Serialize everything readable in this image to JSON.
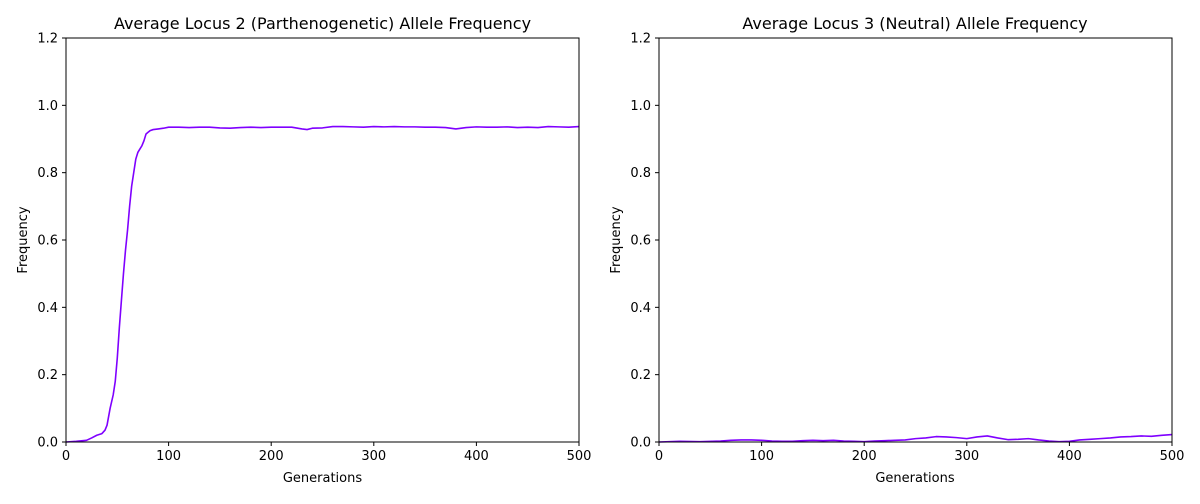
{
  "colors": {
    "line": "#7f00ff",
    "axes": "#000000",
    "background": "#ffffff"
  },
  "chart_data": [
    {
      "type": "line",
      "title": "Average Locus 2 (Parthenogenetic) Allele Frequency",
      "xlabel": "Generations",
      "ylabel": "Frequency",
      "xlim": [
        0,
        500
      ],
      "ylim": [
        0,
        1.2
      ],
      "xticks": [
        0,
        100,
        200,
        300,
        400,
        500
      ],
      "yticks": [
        0.0,
        0.2,
        0.4,
        0.6,
        0.8,
        1.0,
        1.2
      ],
      "ytick_labels": [
        "0.0",
        "0.2",
        "0.4",
        "0.6",
        "0.8",
        "1.0",
        "1.2"
      ],
      "grid": false,
      "series": [
        {
          "x": [
            0,
            10,
            20,
            25,
            30,
            35,
            38,
            40,
            43,
            46,
            48,
            50,
            52,
            54,
            56,
            58,
            60,
            62,
            64,
            66,
            68,
            70,
            72,
            74,
            76,
            78,
            80,
            82,
            85,
            90,
            95,
            100,
            110,
            120,
            130,
            140,
            150,
            160,
            170,
            180,
            190,
            200,
            210,
            220,
            230,
            235,
            240,
            250,
            260,
            270,
            280,
            290,
            300,
            310,
            320,
            330,
            340,
            350,
            360,
            370,
            380,
            390,
            400,
            410,
            420,
            430,
            440,
            450,
            460,
            470,
            480,
            490,
            500
          ],
          "y": [
            0.0,
            0.002,
            0.005,
            0.012,
            0.02,
            0.025,
            0.035,
            0.05,
            0.1,
            0.14,
            0.18,
            0.25,
            0.34,
            0.42,
            0.5,
            0.57,
            0.63,
            0.7,
            0.76,
            0.8,
            0.84,
            0.86,
            0.87,
            0.88,
            0.895,
            0.915,
            0.92,
            0.925,
            0.928,
            0.93,
            0.932,
            0.935,
            0.935,
            0.934,
            0.935,
            0.935,
            0.933,
            0.932,
            0.934,
            0.935,
            0.934,
            0.935,
            0.935,
            0.935,
            0.93,
            0.928,
            0.932,
            0.933,
            0.937,
            0.937,
            0.936,
            0.935,
            0.937,
            0.936,
            0.937,
            0.936,
            0.936,
            0.935,
            0.935,
            0.934,
            0.93,
            0.934,
            0.936,
            0.935,
            0.935,
            0.936,
            0.934,
            0.935,
            0.934,
            0.937,
            0.936,
            0.935,
            0.937
          ]
        }
      ]
    },
    {
      "type": "line",
      "title": "Average Locus 3 (Neutral) Allele Frequency",
      "xlabel": "Generations",
      "ylabel": "Frequency",
      "xlim": [
        0,
        500
      ],
      "ylim": [
        0,
        1.2
      ],
      "xticks": [
        0,
        100,
        200,
        300,
        400,
        500
      ],
      "yticks": [
        0.0,
        0.2,
        0.4,
        0.6,
        0.8,
        1.0,
        1.2
      ],
      "ytick_labels": [
        "0.0",
        "0.2",
        "0.4",
        "0.6",
        "0.8",
        "1.0",
        "1.2"
      ],
      "grid": false,
      "series": [
        {
          "x": [
            0,
            20,
            40,
            60,
            70,
            80,
            90,
            100,
            110,
            120,
            130,
            140,
            150,
            160,
            170,
            180,
            190,
            200,
            210,
            220,
            230,
            240,
            250,
            260,
            270,
            280,
            290,
            300,
            310,
            320,
            330,
            340,
            350,
            360,
            370,
            380,
            390,
            400,
            410,
            420,
            430,
            440,
            450,
            460,
            470,
            480,
            490,
            500
          ],
          "y": [
            0.0,
            0.002,
            0.001,
            0.003,
            0.005,
            0.006,
            0.006,
            0.005,
            0.003,
            0.002,
            0.002,
            0.004,
            0.005,
            0.004,
            0.005,
            0.003,
            0.002,
            0.001,
            0.003,
            0.004,
            0.005,
            0.006,
            0.01,
            0.012,
            0.016,
            0.015,
            0.013,
            0.01,
            0.015,
            0.018,
            0.012,
            0.007,
            0.008,
            0.01,
            0.006,
            0.003,
            0.001,
            0.002,
            0.006,
            0.008,
            0.01,
            0.012,
            0.015,
            0.016,
            0.018,
            0.017,
            0.02,
            0.022
          ]
        }
      ]
    }
  ]
}
